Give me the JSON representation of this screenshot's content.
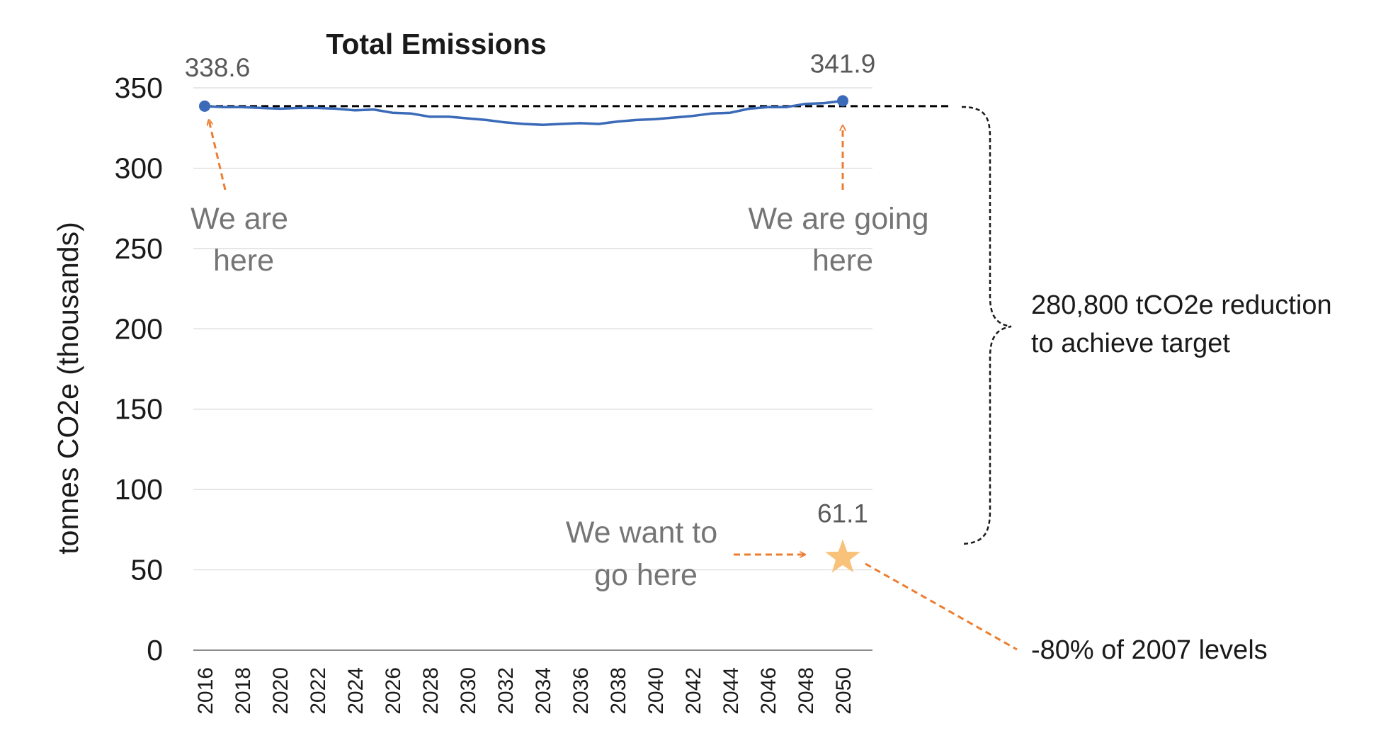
{
  "chart_data": {
    "type": "line",
    "title": "Total Emissions",
    "ylabel": "tonnes CO2e (thousands)",
    "xlabel": "",
    "ylim": [
      0,
      350
    ],
    "yticks": [
      0,
      50,
      100,
      150,
      200,
      250,
      300,
      350
    ],
    "xticks": [
      "2016",
      "2018",
      "2020",
      "2022",
      "2024",
      "2026",
      "2028",
      "2030",
      "2032",
      "2034",
      "2036",
      "2038",
      "2040",
      "2042",
      "2044",
      "2046",
      "2048",
      "2050"
    ],
    "grid": true,
    "series": [
      {
        "x": [
          2016,
          2017,
          2018,
          2019,
          2020,
          2021,
          2022,
          2023,
          2024,
          2025,
          2026,
          2027,
          2028,
          2029,
          2030,
          2031,
          2032,
          2033,
          2034,
          2035,
          2036,
          2037,
          2038,
          2039,
          2040,
          2041,
          2042,
          2043,
          2044,
          2045,
          2046,
          2047,
          2048,
          2049,
          2050
        ],
        "values": [
          338.6,
          338.0,
          338.0,
          337.5,
          337.0,
          337.5,
          337.5,
          337.0,
          336.0,
          336.5,
          334.5,
          334.0,
          332.0,
          332.0,
          331.0,
          330.0,
          328.5,
          327.5,
          327.0,
          327.5,
          328.0,
          327.5,
          329.0,
          330.0,
          330.5,
          331.5,
          332.5,
          334.0,
          334.5,
          337.0,
          338.0,
          338.0,
          340.0,
          340.5,
          341.9
        ],
        "color": "#3a6ab8"
      }
    ],
    "data_labels": [
      {
        "x": 2016,
        "y": 338.6,
        "text": "338.6"
      },
      {
        "x": 2050,
        "y": 341.9,
        "text": "341.9"
      },
      {
        "x": 2050,
        "y": 61.1,
        "text": "61.1"
      }
    ],
    "reference_line": {
      "y": 338.6,
      "style": "dashed",
      "color": "#000000"
    },
    "target_point": {
      "x": 2050,
      "y": 61.1,
      "marker": "star",
      "color": "#f9c27a"
    },
    "annotations": {
      "we_are_here": [
        "We are",
        "here"
      ],
      "we_are_going_here": [
        "We are going",
        "here"
      ],
      "we_want_to_go_here": [
        "We want to",
        "go here"
      ],
      "reduction": [
        "280,800 tCO2e reduction",
        "to achieve target"
      ],
      "target_note": "-80% of 2007 levels"
    },
    "colors": {
      "line": "#3a6ab8",
      "arrow": "#ed7d31",
      "star": "#f9c27a",
      "grid": "#d9d9d9",
      "axis": "#8c8c8c",
      "annotation_text": "#757575"
    }
  }
}
